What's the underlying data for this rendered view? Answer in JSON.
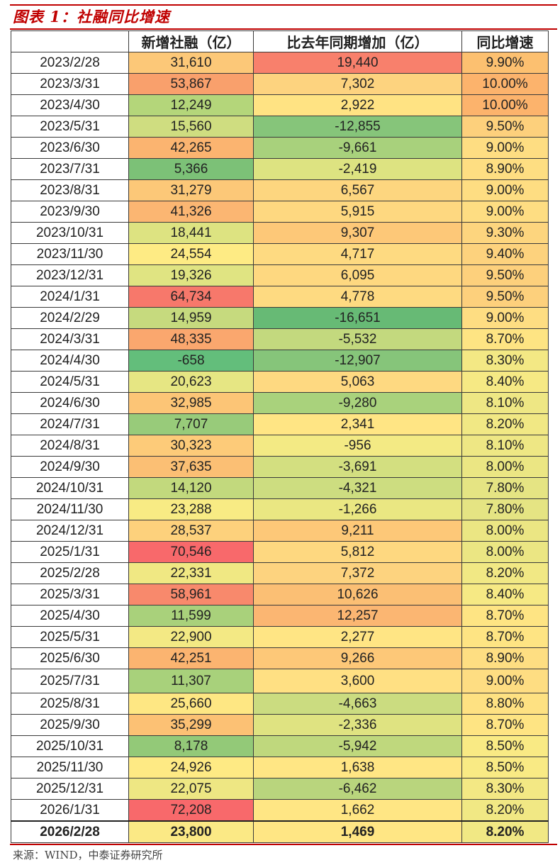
{
  "title": "图表 1：社融同比增速",
  "headers": [
    "",
    "新增社融（亿）",
    "比去年同期增加（亿）",
    "同比增速"
  ],
  "rows": [
    {
      "date": "2023/2/28",
      "new": "31,610",
      "diff": "19,440",
      "yoy": "9.90%",
      "c1": "#fcc878",
      "c2": "#f8806c",
      "c3": "#fcc070"
    },
    {
      "date": "2023/3/31",
      "new": "53,867",
      "diff": "7,302",
      "yoy": "10.00%",
      "c1": "#f9a06c",
      "c2": "#fdd37f",
      "c3": "#fcb36c"
    },
    {
      "date": "2023/4/30",
      "new": "12,249",
      "diff": "2,922",
      "yoy": "10.00%",
      "c1": "#b4d67a",
      "c2": "#ffe383",
      "c3": "#fcb36c"
    },
    {
      "date": "2023/5/31",
      "new": "15,560",
      "diff": "-12,855",
      "yoy": "9.50%",
      "c1": "#cfdd80",
      "c2": "#86c57a",
      "c3": "#fdd07c"
    },
    {
      "date": "2023/6/30",
      "new": "42,265",
      "diff": "-9,661",
      "yoy": "9.00%",
      "c1": "#fbb470",
      "c2": "#a8d17c",
      "c3": "#fedd82"
    },
    {
      "date": "2023/7/31",
      "new": "5,366",
      "diff": "-2,419",
      "yoy": "8.90%",
      "c1": "#7cc177",
      "c2": "#dde381",
      "c3": "#fede82"
    },
    {
      "date": "2023/8/31",
      "new": "31,279",
      "diff": "6,567",
      "yoy": "9.00%",
      "c1": "#fcc878",
      "c2": "#fdd67f",
      "c3": "#fedd82"
    },
    {
      "date": "2023/9/30",
      "new": "41,326",
      "diff": "5,915",
      "yoy": "9.00%",
      "c1": "#fbb672",
      "c2": "#fed880",
      "c3": "#fedd82"
    },
    {
      "date": "2023/10/31",
      "new": "18,441",
      "diff": "9,307",
      "yoy": "9.30%",
      "c1": "#dde381",
      "c2": "#fdc878",
      "c3": "#fdd57e"
    },
    {
      "date": "2023/11/30",
      "new": "24,554",
      "diff": "4,717",
      "yoy": "9.40%",
      "c1": "#feeb84",
      "c2": "#feda81",
      "c3": "#fdd27d"
    },
    {
      "date": "2023/12/31",
      "new": "19,326",
      "diff": "6,095",
      "yoy": "9.50%",
      "c1": "#e0e482",
      "c2": "#fed880",
      "c3": "#fdd07c"
    },
    {
      "date": "2024/1/31",
      "new": "64,734",
      "diff": "4,778",
      "yoy": "9.50%",
      "c1": "#f7786b",
      "c2": "#feda81",
      "c3": "#fdd07c"
    },
    {
      "date": "2024/2/29",
      "new": "14,959",
      "diff": "-16,651",
      "yoy": "9.00%",
      "c1": "#c6da7e",
      "c2": "#67ba75",
      "c3": "#fedd82"
    },
    {
      "date": "2024/3/31",
      "new": "48,335",
      "diff": "-5,532",
      "yoy": "8.70%",
      "c1": "#faa76e",
      "c2": "#c3d97e",
      "c3": "#fee483"
    },
    {
      "date": "2024/4/30",
      "new": "-658",
      "diff": "-12,907",
      "yoy": "8.30%",
      "c1": "#63be7b",
      "c2": "#86c57a",
      "c3": "#f3e884"
    },
    {
      "date": "2024/5/31",
      "new": "20,623",
      "diff": "5,063",
      "yoy": "8.40%",
      "c1": "#e6e683",
      "c2": "#fed981",
      "c3": "#f6e984"
    },
    {
      "date": "2024/6/30",
      "new": "32,985",
      "diff": "-9,280",
      "yoy": "8.10%",
      "c1": "#fcc576",
      "c2": "#a9d27c",
      "c3": "#eee784"
    },
    {
      "date": "2024/7/31",
      "new": "7,707",
      "diff": "2,341",
      "yoy": "8.20%",
      "c1": "#98cb7a",
      "c2": "#ffe584",
      "c3": "#f1e884"
    },
    {
      "date": "2024/8/31",
      "new": "30,323",
      "diff": "-956",
      "yoy": "8.10%",
      "c1": "#fdcb79",
      "c2": "#f3ea84",
      "c3": "#eee784"
    },
    {
      "date": "2024/9/30",
      "new": "37,635",
      "diff": "-3,691",
      "yoy": "8.00%",
      "c1": "#fbbf74",
      "c2": "#d3df80",
      "c3": "#ebe683"
    },
    {
      "date": "2024/10/31",
      "new": "14,120",
      "diff": "-4,321",
      "yoy": "7.80%",
      "c1": "#c2d97d",
      "c2": "#cddd80",
      "c3": "#e5e483"
    },
    {
      "date": "2024/11/30",
      "new": "23,288",
      "diff": "-1,266",
      "yoy": "7.80%",
      "c1": "#f8eb84",
      "c2": "#eae782",
      "c3": "#e5e483"
    },
    {
      "date": "2024/12/31",
      "new": "28,537",
      "diff": "9,211",
      "yoy": "8.00%",
      "c1": "#fdd17c",
      "c2": "#fdc878",
      "c3": "#ebe683"
    },
    {
      "date": "2025/1/31",
      "new": "70,546",
      "diff": "5,812",
      "yoy": "8.00%",
      "c1": "#f8696b",
      "c2": "#fed880",
      "c3": "#ebe683"
    },
    {
      "date": "2025/2/28",
      "new": "22,331",
      "diff": "7,372",
      "yoy": "8.20%",
      "c1": "#f0e883",
      "c2": "#fdd37f",
      "c3": "#f1e884"
    },
    {
      "date": "2025/3/31",
      "new": "58,961",
      "diff": "10,626",
      "yoy": "8.40%",
      "c1": "#f8896c",
      "c2": "#fbbf74",
      "c3": "#f6e984"
    },
    {
      "date": "2025/4/30",
      "new": "11,599",
      "diff": "12,257",
      "yoy": "8.70%",
      "c1": "#a9d17b",
      "c2": "#fbb672",
      "c3": "#fee483"
    },
    {
      "date": "2025/5/31",
      "new": "22,900",
      "diff": "2,277",
      "yoy": "8.70%",
      "c1": "#f3e984",
      "c2": "#ffe584",
      "c3": "#fee483"
    },
    {
      "date": "2025/6/30",
      "new": "42,251",
      "diff": "9,266",
      "yoy": "8.90%",
      "c1": "#fbb470",
      "c2": "#fdc878",
      "c3": "#fede82"
    },
    {
      "date": "2025/7/31",
      "new": "11,307",
      "diff": "3,600",
      "yoy": "9.00%",
      "c1": "#a8d17b",
      "c2": "#ffe083",
      "c3": "#fedd82",
      "tall": true
    },
    {
      "date": "2025/8/31",
      "new": "25,660",
      "diff": "-4,663",
      "yoy": "8.80%",
      "c1": "#fee783",
      "c2": "#cbdc80",
      "c3": "#fee182"
    },
    {
      "date": "2025/9/30",
      "new": "35,299",
      "diff": "-2,336",
      "yoy": "8.70%",
      "c1": "#fcc174",
      "c2": "#dfe381",
      "c3": "#fee483"
    },
    {
      "date": "2025/10/31",
      "new": "8,178",
      "diff": "-5,942",
      "yoy": "8.50%",
      "c1": "#93c978",
      "c2": "#bfd87d",
      "c3": "#f9ea84"
    },
    {
      "date": "2025/11/30",
      "new": "24,926",
      "diff": "1,638",
      "yoy": "8.50%",
      "c1": "#feea84",
      "c2": "#ffe684",
      "c3": "#f9ea84"
    },
    {
      "date": "2025/12/31",
      "new": "22,075",
      "diff": "-6,462",
      "yoy": "8.30%",
      "c1": "#eee783",
      "c2": "#b9d57d",
      "c3": "#f3e884"
    },
    {
      "date": "2026/1/31",
      "new": "72,208",
      "diff": "1,662",
      "yoy": "8.20%",
      "c1": "#f8696b",
      "c2": "#ffe684",
      "c3": "#f1e884"
    },
    {
      "date": "2026/2/28",
      "new": "23,800",
      "diff": "1,469",
      "yoy": "8.20%",
      "c1": "#fbe985",
      "c2": "#ffe684",
      "c3": "#f1e884",
      "total": true
    }
  ],
  "source": "来源：WIND，中泰证券研究所"
}
